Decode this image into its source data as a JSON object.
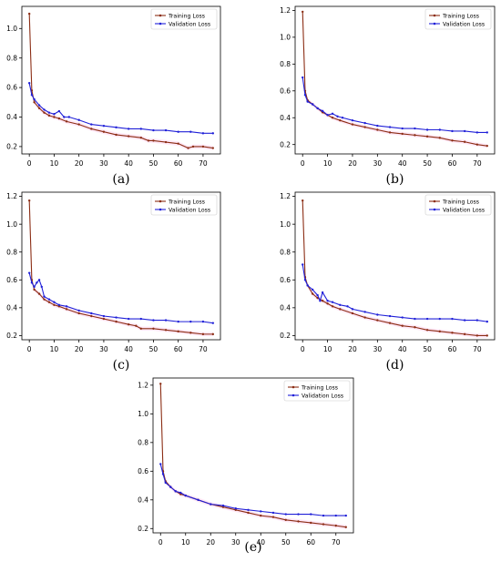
{
  "colors": {
    "training": "#8b2d14",
    "validation": "#2020d8",
    "band": "#ff66cc"
  },
  "panel_labels": [
    "(a)",
    "(b)",
    "(c)",
    "(d)",
    "(e)"
  ],
  "chart_data": [
    {
      "type": "line",
      "xlim": [
        -3,
        77
      ],
      "ylim": [
        0.15,
        1.15
      ],
      "xticks": [
        0,
        10,
        20,
        30,
        40,
        50,
        60,
        70
      ],
      "yticks": [
        0.2,
        0.4,
        0.6,
        0.8,
        1.0
      ],
      "ytick_labels": [
        "0.2",
        "0.4",
        "0.6",
        "0.8",
        "1.0"
      ],
      "grid": false,
      "legend": "top-right",
      "series": [
        {
          "name": "Training Loss",
          "x": [
            0,
            1,
            2,
            4,
            6,
            8,
            10,
            12,
            15,
            20,
            25,
            30,
            35,
            40,
            45,
            48,
            50,
            55,
            60,
            64,
            66,
            70,
            74
          ],
          "y": [
            1.1,
            0.58,
            0.5,
            0.46,
            0.43,
            0.41,
            0.4,
            0.39,
            0.37,
            0.35,
            0.32,
            0.3,
            0.28,
            0.27,
            0.26,
            0.24,
            0.24,
            0.23,
            0.22,
            0.19,
            0.2,
            0.2,
            0.19
          ]
        },
        {
          "name": "Validation Loss",
          "x": [
            0,
            1,
            2,
            4,
            6,
            8,
            10,
            12,
            14,
            16,
            20,
            25,
            30,
            35,
            40,
            45,
            50,
            55,
            60,
            65,
            70,
            74
          ],
          "y": [
            0.63,
            0.55,
            0.52,
            0.48,
            0.45,
            0.43,
            0.42,
            0.44,
            0.4,
            0.4,
            0.38,
            0.35,
            0.34,
            0.33,
            0.32,
            0.32,
            0.31,
            0.31,
            0.3,
            0.3,
            0.29,
            0.29
          ]
        }
      ]
    },
    {
      "type": "line",
      "xlim": [
        -3,
        77
      ],
      "ylim": [
        0.13,
        1.23
      ],
      "xticks": [
        0,
        10,
        20,
        30,
        40,
        50,
        60,
        70
      ],
      "yticks": [
        0.2,
        0.4,
        0.6,
        0.8,
        1.0,
        1.2
      ],
      "ytick_labels": [
        "0.2",
        "0.4",
        "0.6",
        "0.8",
        "1.0",
        "1.2"
      ],
      "grid": false,
      "legend": "top-right",
      "series": [
        {
          "name": "Training Loss",
          "x": [
            0,
            1,
            2,
            4,
            6,
            8,
            10,
            12,
            15,
            20,
            25,
            30,
            35,
            40,
            45,
            50,
            55,
            60,
            65,
            70,
            74
          ],
          "y": [
            1.19,
            0.6,
            0.53,
            0.5,
            0.47,
            0.44,
            0.42,
            0.4,
            0.38,
            0.35,
            0.33,
            0.31,
            0.29,
            0.28,
            0.27,
            0.26,
            0.25,
            0.23,
            0.22,
            0.2,
            0.19
          ]
        },
        {
          "name": "Validation Loss",
          "x": [
            0,
            1,
            2,
            4,
            6,
            8,
            10,
            12,
            14,
            16,
            20,
            25,
            30,
            35,
            40,
            45,
            50,
            55,
            60,
            65,
            70,
            74
          ],
          "y": [
            0.7,
            0.57,
            0.52,
            0.5,
            0.47,
            0.45,
            0.42,
            0.43,
            0.41,
            0.4,
            0.38,
            0.36,
            0.34,
            0.33,
            0.32,
            0.32,
            0.31,
            0.31,
            0.3,
            0.3,
            0.29,
            0.29
          ]
        }
      ]
    },
    {
      "type": "line",
      "xlim": [
        -3,
        77
      ],
      "ylim": [
        0.17,
        1.23
      ],
      "xticks": [
        0,
        10,
        20,
        30,
        40,
        50,
        60,
        70
      ],
      "yticks": [
        0.2,
        0.4,
        0.6,
        0.8,
        1.0,
        1.2
      ],
      "ytick_labels": [
        "0.2",
        "0.4",
        "0.6",
        "0.8",
        "1.0",
        "1.2"
      ],
      "grid": false,
      "legend": "top-right",
      "series": [
        {
          "name": "Training Loss",
          "x": [
            0,
            1,
            2,
            4,
            6,
            8,
            10,
            12,
            15,
            20,
            25,
            30,
            35,
            40,
            43,
            45,
            50,
            55,
            60,
            65,
            70,
            74
          ],
          "y": [
            1.17,
            0.6,
            0.53,
            0.5,
            0.46,
            0.44,
            0.42,
            0.41,
            0.39,
            0.36,
            0.34,
            0.32,
            0.3,
            0.28,
            0.27,
            0.25,
            0.25,
            0.24,
            0.23,
            0.22,
            0.21,
            0.21
          ]
        },
        {
          "name": "Validation Loss",
          "x": [
            0,
            1,
            2,
            3,
            4,
            5,
            6,
            8,
            10,
            12,
            15,
            20,
            25,
            30,
            35,
            40,
            45,
            50,
            55,
            60,
            65,
            70,
            74
          ],
          "y": [
            0.65,
            0.58,
            0.55,
            0.58,
            0.6,
            0.55,
            0.48,
            0.46,
            0.44,
            0.42,
            0.41,
            0.38,
            0.36,
            0.34,
            0.33,
            0.32,
            0.32,
            0.31,
            0.31,
            0.3,
            0.3,
            0.3,
            0.29
          ]
        }
      ]
    },
    {
      "type": "line",
      "xlim": [
        -3,
        77
      ],
      "ylim": [
        0.17,
        1.23
      ],
      "xticks": [
        0,
        10,
        20,
        30,
        40,
        50,
        60,
        70
      ],
      "yticks": [
        0.2,
        0.4,
        0.6,
        0.8,
        1.0,
        1.2
      ],
      "ytick_labels": [
        "0.2",
        "0.4",
        "0.6",
        "0.8",
        "1.0",
        "1.2"
      ],
      "grid": false,
      "legend": "top-right",
      "series": [
        {
          "name": "Training Loss",
          "x": [
            0,
            1,
            2,
            4,
            6,
            8,
            10,
            12,
            15,
            20,
            25,
            30,
            35,
            40,
            45,
            50,
            55,
            60,
            65,
            70,
            74
          ],
          "y": [
            1.17,
            0.62,
            0.56,
            0.5,
            0.47,
            0.45,
            0.43,
            0.41,
            0.39,
            0.36,
            0.33,
            0.31,
            0.29,
            0.27,
            0.26,
            0.24,
            0.23,
            0.22,
            0.21,
            0.2,
            0.2
          ]
        },
        {
          "name": "Validation Loss",
          "x": [
            0,
            1,
            2,
            4,
            6,
            7,
            8,
            10,
            12,
            15,
            18,
            20,
            25,
            30,
            35,
            40,
            45,
            50,
            55,
            60,
            65,
            70,
            74
          ],
          "y": [
            0.71,
            0.6,
            0.56,
            0.53,
            0.49,
            0.45,
            0.51,
            0.45,
            0.44,
            0.42,
            0.41,
            0.39,
            0.37,
            0.35,
            0.34,
            0.33,
            0.32,
            0.32,
            0.32,
            0.32,
            0.31,
            0.31,
            0.3
          ]
        }
      ]
    },
    {
      "type": "line",
      "xlim": [
        -3,
        77
      ],
      "ylim": [
        0.17,
        1.25
      ],
      "xticks": [
        0,
        10,
        20,
        30,
        40,
        50,
        60,
        70
      ],
      "yticks": [
        0.2,
        0.4,
        0.6,
        0.8,
        1.0,
        1.2
      ],
      "ytick_labels": [
        "0.2",
        "0.4",
        "0.6",
        "0.8",
        "1.0",
        "1.2"
      ],
      "grid": false,
      "legend": "top-right",
      "series": [
        {
          "name": "Training Loss",
          "x": [
            0,
            1,
            2,
            4,
            6,
            8,
            10,
            15,
            20,
            25,
            30,
            35,
            40,
            45,
            50,
            55,
            60,
            65,
            70,
            74
          ],
          "y": [
            1.21,
            0.6,
            0.53,
            0.49,
            0.46,
            0.44,
            0.43,
            0.4,
            0.37,
            0.35,
            0.33,
            0.31,
            0.29,
            0.28,
            0.26,
            0.25,
            0.24,
            0.23,
            0.22,
            0.21
          ]
        },
        {
          "name": "Validation Loss",
          "x": [
            0,
            1,
            2,
            4,
            6,
            8,
            10,
            15,
            20,
            25,
            30,
            35,
            40,
            45,
            50,
            55,
            60,
            65,
            70,
            74
          ],
          "y": [
            0.65,
            0.58,
            0.52,
            0.49,
            0.46,
            0.45,
            0.43,
            0.4,
            0.37,
            0.36,
            0.34,
            0.33,
            0.32,
            0.31,
            0.3,
            0.3,
            0.3,
            0.29,
            0.29,
            0.29
          ]
        }
      ]
    }
  ]
}
